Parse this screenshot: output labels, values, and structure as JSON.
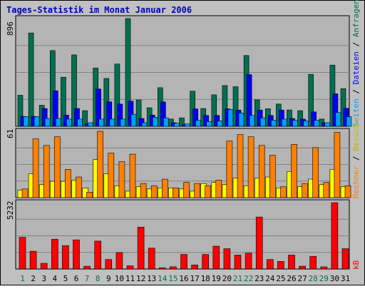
{
  "title": "Tages-Statistik im Monat Januar 2006",
  "colors": {
    "page_bg": "#c0c0c0",
    "panel_bg": "#b4b4b4",
    "title": "#0000c0",
    "anfragen": "#007050",
    "dateien": "#0000ff",
    "seiten": "#00a0ff",
    "besuche": "#ffff00",
    "rechner": "#ff8000",
    "kb": "#ff0000",
    "weekend_label": "#007050",
    "weekday_label": "#000000",
    "grid": "#808080"
  },
  "right_labels": {
    "anfragen": "Anfragen",
    "dateien": "Dateien",
    "seiten": "Seiten",
    "besuche": "Besuche",
    "rechner": "Rechner",
    "kb": "kB",
    "sep": " / "
  },
  "chart_data": [
    {
      "type": "bar",
      "panel": "top",
      "ymax_label": "896",
      "ylim": [
        0,
        896
      ],
      "categories": [
        "1",
        "2",
        "3",
        "4",
        "5",
        "6",
        "7",
        "8",
        "9",
        "10",
        "11",
        "12",
        "13",
        "14",
        "15",
        "16",
        "17",
        "18",
        "19",
        "20",
        "21",
        "22",
        "23",
        "24",
        "25",
        "26",
        "27",
        "28",
        "29",
        "30",
        "31"
      ],
      "weekend_days": [
        "1",
        "7",
        "8",
        "14",
        "15",
        "21",
        "22",
        "28",
        "29"
      ],
      "series": [
        {
          "name": "Anfragen",
          "values": [
            258,
            776,
            175,
            630,
            408,
            594,
            130,
            485,
            398,
            518,
            896,
            219,
            154,
            321,
            60,
            70,
            292,
            148,
            262,
            339,
            329,
            589,
            220,
            146,
            185,
            136,
            130,
            432,
            60,
            509,
            313
          ]
        },
        {
          "name": "Dateien",
          "values": [
            82,
            82,
            148,
            296,
            93,
            148,
            20,
            310,
            204,
            185,
            209,
            65,
            93,
            203,
            30,
            15,
            145,
            90,
            90,
            145,
            135,
            430,
            135,
            90,
            135,
            65,
            60,
            120,
            30,
            270,
            150
          ]
        },
        {
          "name": "Seiten",
          "values": [
            80,
            80,
            65,
            65,
            60,
            60,
            30,
            60,
            60,
            60,
            100,
            30,
            75,
            70,
            25,
            20,
            50,
            40,
            45,
            140,
            110,
            90,
            70,
            50,
            60,
            50,
            45,
            50,
            30,
            115,
            80
          ]
        }
      ]
    },
    {
      "type": "bar",
      "panel": "middle",
      "ymax_label": "61",
      "ylim": [
        0,
        61
      ],
      "categories": [
        "1",
        "2",
        "3",
        "4",
        "5",
        "6",
        "7",
        "8",
        "9",
        "10",
        "11",
        "12",
        "13",
        "14",
        "15",
        "16",
        "17",
        "18",
        "19",
        "20",
        "21",
        "22",
        "23",
        "24",
        "25",
        "26",
        "27",
        "28",
        "29",
        "30",
        "31"
      ],
      "series": [
        {
          "name": "Besuche",
          "values": [
            7,
            22,
            12,
            15,
            15,
            16,
            9,
            35,
            22,
            11,
            6,
            10,
            8,
            9,
            9,
            8,
            6,
            13,
            14,
            12,
            18,
            11,
            18,
            19,
            9,
            24,
            10,
            17,
            12,
            26,
            10
          ]
        },
        {
          "name": "Rechner",
          "values": [
            8,
            54,
            48,
            56,
            26,
            19,
            5,
            61,
            41,
            33,
            40,
            13,
            11,
            17,
            9,
            14,
            13,
            11,
            16,
            52,
            58,
            56,
            48,
            39,
            10,
            49,
            13,
            46,
            14,
            60,
            11
          ]
        }
      ]
    },
    {
      "type": "bar",
      "panel": "bottom",
      "ymax_label": "5232",
      "ylim": [
        0,
        5232
      ],
      "categories": [
        "1",
        "2",
        "3",
        "4",
        "5",
        "6",
        "7",
        "8",
        "9",
        "10",
        "11",
        "12",
        "13",
        "14",
        "15",
        "16",
        "17",
        "18",
        "19",
        "20",
        "21",
        "22",
        "23",
        "24",
        "25",
        "26",
        "27",
        "28",
        "29",
        "30",
        "31"
      ],
      "series": [
        {
          "name": "kB",
          "values": [
            2500,
            1400,
            450,
            2350,
            1850,
            2300,
            220,
            2200,
            750,
            1300,
            250,
            3300,
            1650,
            100,
            180,
            1150,
            320,
            1150,
            1800,
            1600,
            1100,
            1250,
            4100,
            750,
            600,
            1100,
            220,
            1000,
            170,
            5232,
            1600
          ]
        }
      ]
    }
  ]
}
